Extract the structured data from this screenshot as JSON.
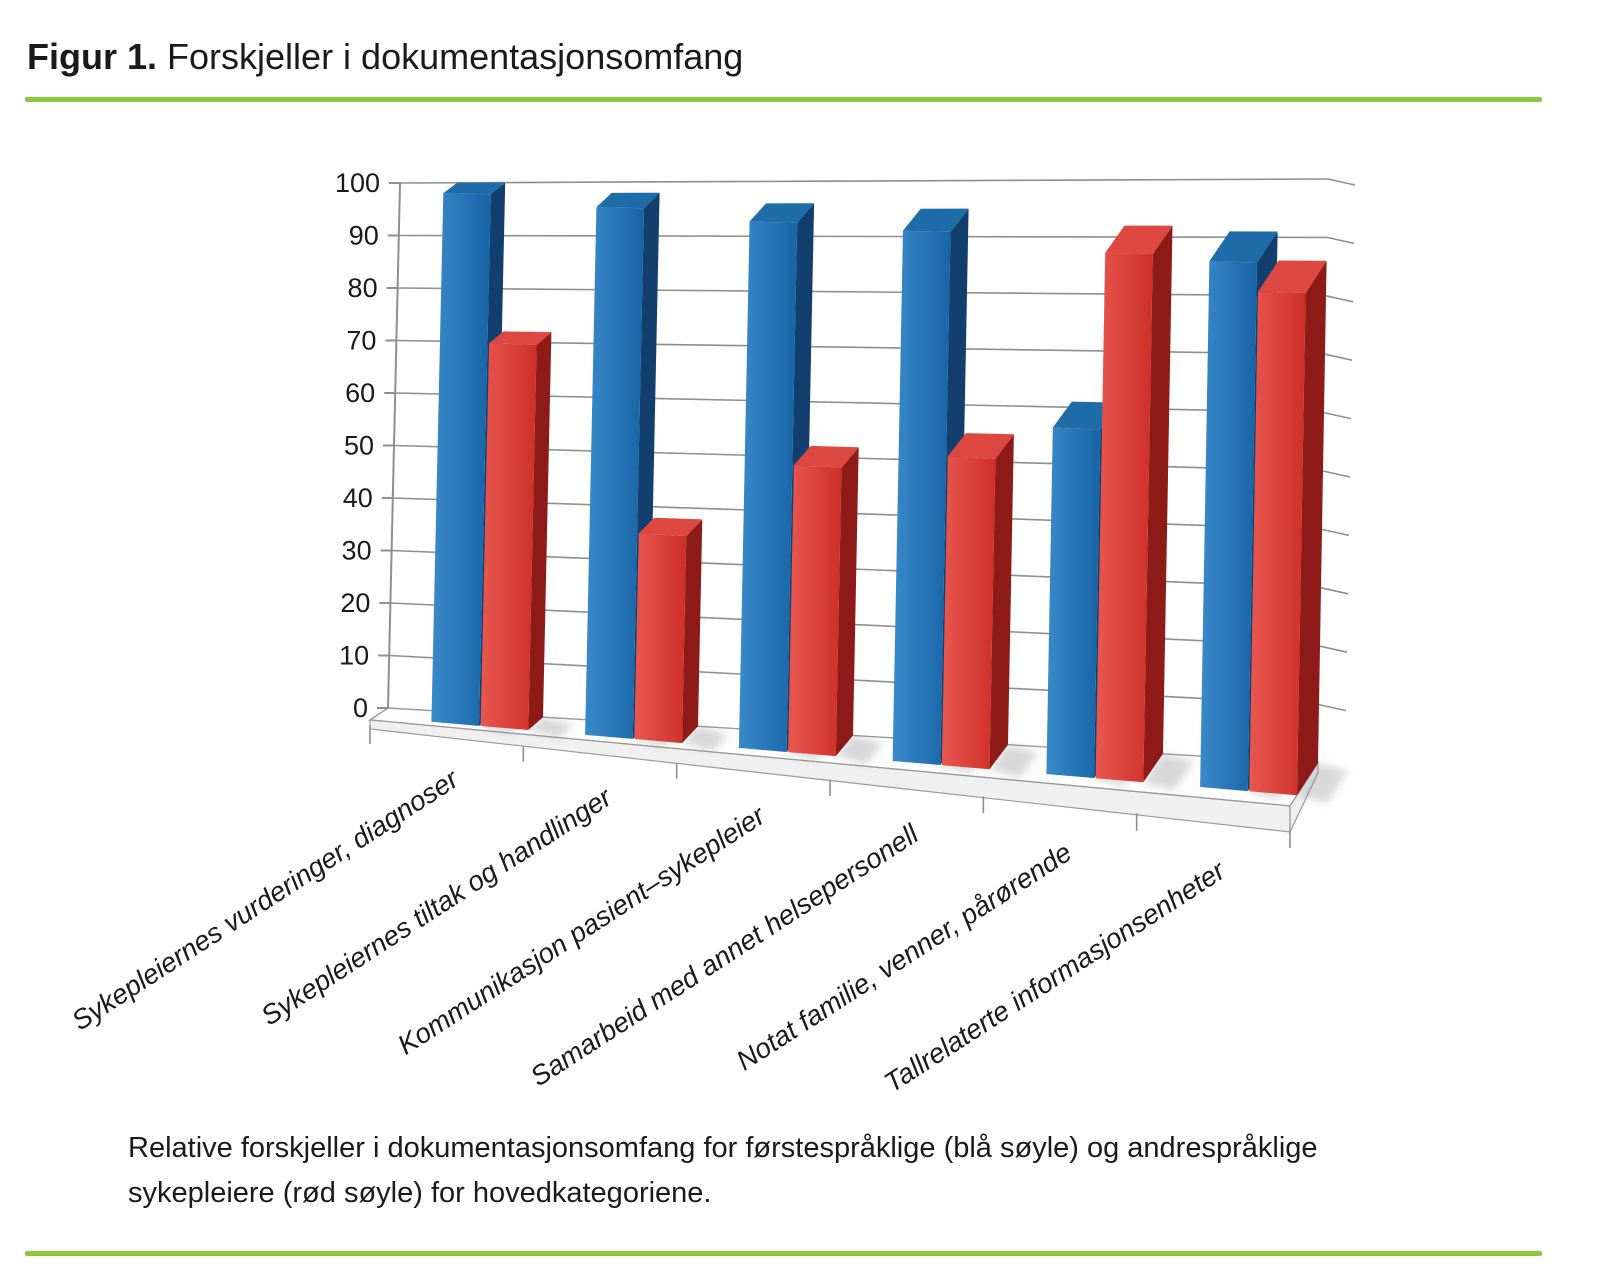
{
  "figure": {
    "label": "Figur 1.",
    "title": "Forskjeller i dokumentasjonsomfang"
  },
  "caption": {
    "line1": "Relative forskjeller i dokumentasjonsomfang for førstespråklige (blå søyle) og andrespråklige",
    "line2": "sykepleiere (rød søyle) for hovedkategoriene."
  },
  "chart_data": {
    "type": "bar",
    "projection": "3d-perspective",
    "title": "",
    "xlabel": "",
    "ylabel": "",
    "ylim": [
      0,
      100
    ],
    "yticks": [
      0,
      10,
      20,
      30,
      40,
      50,
      60,
      70,
      80,
      90,
      100
    ],
    "grid": true,
    "legend_position": "none",
    "categories": [
      "Sykepleiernes vurderinger, diagnoser",
      "Sykepleiernes tiltak og handlinger",
      "Kommunikasjon pasient–sykepleier",
      "Samarbeid med annet helsepersonell",
      "Notat familie, venner, pårørende",
      "Tallrelaterte informasjonsenheter"
    ],
    "series": [
      {
        "name": "førstespråklige (blå søyle)",
        "color": "#1b6cb0",
        "values": [
          100,
          98,
          96,
          95,
          61,
          91
        ]
      },
      {
        "name": "andrespråklige (rød søyle)",
        "color": "#d63830",
        "values": [
          72,
          38,
          52,
          55,
          92,
          86
        ]
      }
    ]
  },
  "colors": {
    "accent_rule": "#8dc63f",
    "grid": "#8f8f8f",
    "axis": "#8f8f8f",
    "text": "#1a1a1a",
    "blue_front_light": "#3a89c9",
    "blue_front_dark": "#1765a7",
    "blue_side": "#123f6e",
    "blue_top": "#1e6ca8",
    "red_front_light": "#e85750",
    "red_front_dark": "#ce2f28",
    "red_side": "#8f1b18",
    "red_top": "#dd4840",
    "floor_face": "#f0f0f0",
    "shadow": "#777777"
  }
}
